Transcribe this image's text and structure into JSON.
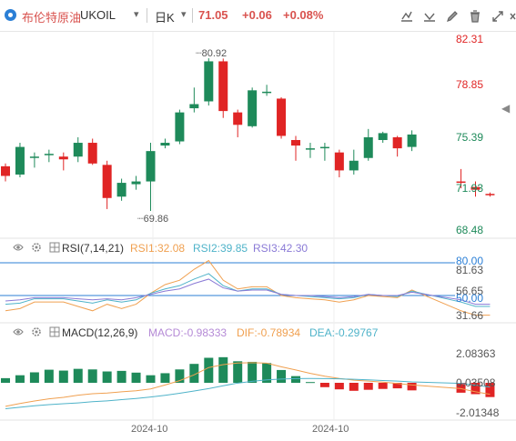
{
  "header": {
    "name": "布伦特原油",
    "symbol": "UKOIL",
    "period": "日K",
    "price": "71.05",
    "change": "+0.06",
    "change_pct": "+0.08%",
    "toolbar_icons": [
      "draw-tools-icon",
      "indicator-icon",
      "pencil-icon",
      "trash-icon",
      "fullscreen-icon",
      "close-icon"
    ]
  },
  "price_axis": [
    "82.31",
    "78.85",
    "75.39",
    "71.93",
    "68.48"
  ],
  "annotations": {
    "high": "80.92",
    "low": "69.86"
  },
  "rsi": {
    "label": "RSI(7,14,21)",
    "rsi1": "RSI1:32.08",
    "rsi2": "RSI2:39.85",
    "rsi3": "RSI3:42.30",
    "axis": [
      "80.00",
      "81.63",
      "56.65",
      "50.00",
      "31.66"
    ]
  },
  "macd": {
    "label": "MACD(12,26,9)",
    "macd": "MACD:-0.98333",
    "dif": "DIF:-0.78934",
    "dea": "DEA:-0.29767",
    "axis": [
      "2.08363",
      "0.03508",
      "-2.01348"
    ]
  },
  "x_axis": [
    "2024-10",
    "2024-10"
  ],
  "colors": {
    "up": "#e02424",
    "down": "#1e8a5a",
    "rsi1": "#f0a050",
    "rsi2": "#4fb3c9",
    "rsi3": "#8a7ad6",
    "dif": "#f0a050",
    "dea": "#4fb3c9",
    "accent": "#2b7fd6"
  },
  "chart_data": [
    {
      "type": "candlestick",
      "title": "布伦特原油 UKOIL 日K",
      "ylim": [
        68.48,
        82.31
      ],
      "ohlc": [
        [
          73.1,
          73.3,
          72.0,
          72.4
        ],
        [
          72.5,
          74.8,
          72.3,
          74.5
        ],
        [
          73.8,
          74.1,
          73.0,
          73.8
        ],
        [
          74.0,
          74.3,
          73.4,
          74.0
        ],
        [
          73.8,
          74.1,
          72.8,
          73.6
        ],
        [
          73.8,
          75.2,
          73.4,
          74.8
        ],
        [
          74.8,
          75.1,
          73.2,
          73.3
        ],
        [
          73.2,
          73.5,
          70.0,
          70.8
        ],
        [
          70.9,
          72.2,
          70.6,
          71.9
        ],
        [
          71.8,
          72.4,
          71.4,
          72.0
        ],
        [
          72.0,
          74.8,
          69.86,
          74.2
        ],
        [
          74.6,
          75.1,
          74.4,
          74.8
        ],
        [
          74.9,
          77.2,
          74.7,
          77.0
        ],
        [
          77.3,
          78.8,
          77.0,
          77.6
        ],
        [
          77.8,
          80.92,
          77.5,
          80.7
        ],
        [
          80.7,
          80.9,
          76.6,
          77.1
        ],
        [
          77.0,
          77.2,
          75.2,
          76.1
        ],
        [
          76.0,
          78.8,
          75.9,
          78.6
        ],
        [
          78.5,
          79.0,
          78.2,
          78.5
        ],
        [
          78.0,
          78.1,
          75.1,
          75.3
        ],
        [
          75.0,
          75.3,
          73.5,
          74.6
        ],
        [
          74.4,
          74.8,
          73.7,
          74.4
        ],
        [
          74.5,
          74.8,
          73.5,
          74.5
        ],
        [
          74.1,
          74.3,
          72.3,
          72.8
        ],
        [
          72.8,
          74.3,
          72.5,
          73.5
        ],
        [
          73.7,
          75.8,
          73.5,
          75.2
        ],
        [
          75.0,
          75.6,
          74.8,
          75.5
        ],
        [
          75.2,
          75.3,
          73.8,
          74.4
        ],
        [
          74.5,
          75.7,
          74.2,
          75.4
        ],
        [
          72.0,
          72.9,
          71.5,
          71.9
        ],
        [
          71.6,
          72.0,
          70.9,
          71.4
        ],
        [
          71.1,
          71.2,
          70.9,
          71.05
        ]
      ]
    },
    {
      "type": "line",
      "title": "RSI(7,14,21)",
      "ylim": [
        31.66,
        81.63
      ],
      "series": [
        {
          "name": "RSI1",
          "values": [
            36,
            38,
            44,
            44,
            44,
            40,
            36,
            42,
            38,
            42,
            52,
            60,
            64,
            74,
            82,
            64,
            56,
            58,
            58,
            50,
            48,
            47,
            46,
            44,
            46,
            50,
            49,
            48,
            55,
            36,
            32,
            32
          ]
        },
        {
          "name": "RSI2",
          "values": [
            42,
            43,
            47,
            47,
            47,
            45,
            43,
            46,
            44,
            46,
            52,
            56,
            59,
            65,
            70,
            59,
            54,
            56,
            56,
            51,
            50,
            49,
            48,
            47,
            48,
            51,
            50,
            49,
            54,
            44,
            40,
            40
          ]
        },
        {
          "name": "RSI3",
          "values": [
            45,
            46,
            48,
            48,
            48,
            47,
            46,
            47,
            46,
            48,
            51,
            54,
            56,
            61,
            65,
            57,
            54,
            55,
            55,
            51,
            50,
            50,
            49,
            48,
            49,
            51,
            50,
            50,
            53,
            46,
            42,
            42
          ]
        }
      ]
    },
    {
      "type": "bar",
      "title": "MACD(12,26,9)",
      "ylim": [
        -2.01348,
        2.08363
      ],
      "series": [
        {
          "name": "MACD",
          "values": [
            0.32,
            0.52,
            0.72,
            0.9,
            0.84,
            0.96,
            0.92,
            0.78,
            0.82,
            0.7,
            0.52,
            0.66,
            0.92,
            1.3,
            1.72,
            1.76,
            1.48,
            1.44,
            1.36,
            0.88,
            0.46,
            0.05,
            -0.3,
            -0.45,
            -0.55,
            -0.48,
            -0.42,
            -0.38,
            -0.52,
            -0.68,
            -0.78,
            -0.98
          ]
        },
        {
          "name": "DIF",
          "values": [
            -1.62,
            -1.42,
            -1.25,
            -1.1,
            -1.0,
            -0.85,
            -0.75,
            -0.7,
            -0.62,
            -0.55,
            -0.42,
            -0.15,
            0.15,
            0.55,
            1.05,
            1.25,
            1.36,
            1.38,
            1.35,
            1.1,
            0.88,
            0.65,
            0.45,
            0.3,
            0.18,
            0.12,
            0.05,
            -0.05,
            -0.15,
            -0.4,
            -0.62,
            -0.79
          ]
        },
        {
          "name": "DEA",
          "values": [
            -1.78,
            -1.68,
            -1.58,
            -1.5,
            -1.44,
            -1.38,
            -1.3,
            -1.24,
            -1.16,
            -1.08,
            -0.98,
            -0.86,
            -0.72,
            -0.56,
            -0.4,
            -0.2,
            -0.02,
            0.1,
            0.2,
            0.26,
            0.29,
            0.3,
            0.29,
            0.27,
            0.24,
            0.2,
            0.16,
            0.12,
            0.06,
            -0.04,
            -0.16,
            -0.3
          ]
        }
      ]
    }
  ]
}
